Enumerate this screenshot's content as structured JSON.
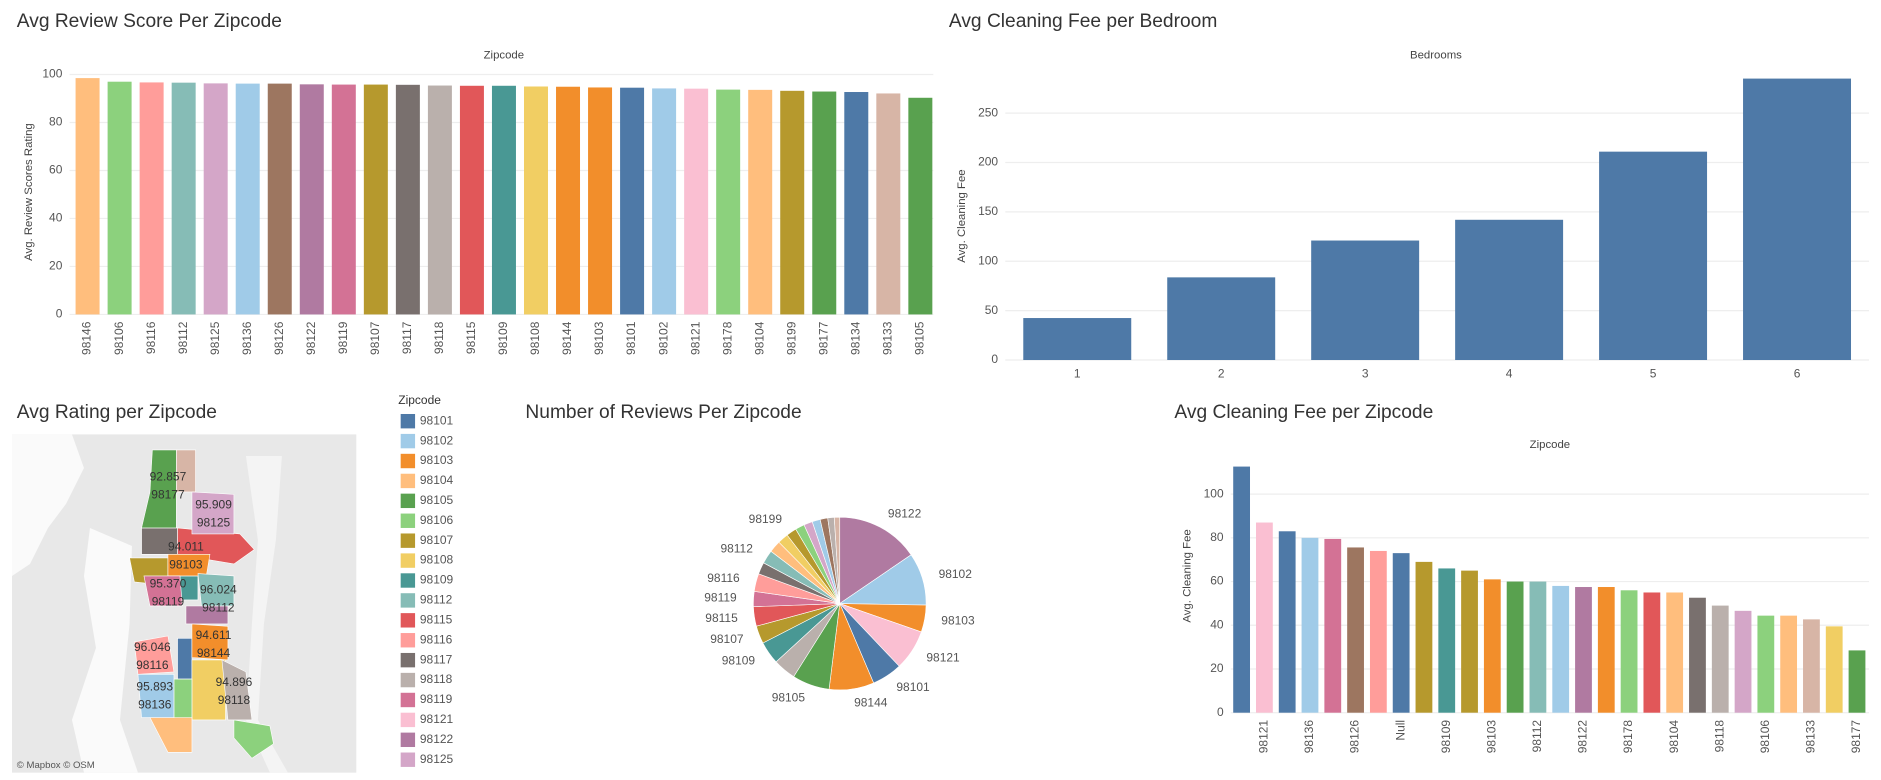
{
  "chart_data": [
    {
      "type": "bar",
      "title": "Avg Review Score Per Zipcode",
      "x_label": "Zipcode",
      "y_label": "Avg. Review Scores Rating",
      "categories": [
        "98146",
        "98106",
        "98116",
        "98112",
        "98125",
        "98136",
        "98126",
        "98122",
        "98119",
        "98107",
        "98117",
        "98118",
        "98115",
        "98109",
        "98108",
        "98144",
        "98103",
        "98101",
        "98102",
        "98121",
        "98178",
        "98104",
        "98199",
        "98177",
        "98134",
        "98133",
        "98105"
      ],
      "values": [
        98.5,
        97.0,
        96.7,
        96.6,
        96.3,
        96.2,
        96.2,
        95.9,
        95.8,
        95.8,
        95.7,
        95.4,
        95.3,
        95.3,
        95.0,
        94.9,
        94.6,
        94.5,
        94.2,
        94.1,
        93.7,
        93.6,
        93.2,
        92.9,
        92.7,
        92.1,
        90.3
      ],
      "colors": [
        "#ffbe7d",
        "#8cd17d",
        "#ff9d9a",
        "#86bcb6",
        "#d4a6c8",
        "#a0cbe8",
        "#9d7660",
        "#b07aa1",
        "#d37295",
        "#b6992d",
        "#79706e",
        "#bab0ac",
        "#e15759",
        "#499894",
        "#f1ce63",
        "#f28e2b",
        "#f28e2b",
        "#4e79a7",
        "#a0cbe8",
        "#fabfd2",
        "#8cd17d",
        "#ffbe7d",
        "#b6992d",
        "#59a14f",
        "#4e79a7",
        "#d7b5a6",
        "#59a14f"
      ],
      "ylim": [
        0,
        102
      ],
      "yticks": [
        0,
        20,
        40,
        60,
        80,
        100
      ],
      "grid": true
    },
    {
      "type": "bar",
      "title": "Avg Cleaning Fee per Bedroom",
      "x_label": "Bedrooms",
      "y_label": "Avg. Cleaning Fee",
      "categories": [
        "1",
        "2",
        "3",
        "4",
        "5",
        "6"
      ],
      "values": [
        42.5,
        83.7,
        121,
        142,
        211,
        285
      ],
      "colors": [
        "#4e79a7",
        "#4e79a7",
        "#4e79a7",
        "#4e79a7",
        "#4e79a7",
        "#4e79a7"
      ],
      "ylim": [
        0,
        294
      ],
      "yticks": [
        0,
        50,
        100,
        150,
        200,
        250
      ],
      "grid": true
    },
    {
      "type": "map",
      "title": "Avg Rating per Zipcode",
      "attribution": "© Mapbox © OSM",
      "zipcodes": [
        "98177",
        "98125",
        "98103",
        "98119",
        "98112",
        "98144",
        "98116",
        "98136",
        "98118"
      ],
      "values": [
        92.857,
        95.909,
        94.011,
        95.37,
        96.024,
        94.611,
        96.046,
        95.893,
        94.896
      ],
      "value_labels": [
        "92.857",
        "95.909",
        "94.011",
        "95.370",
        "96.024",
        "94.611",
        "96.046",
        "95.893",
        "94.896"
      ],
      "colors": [
        "#59a14f",
        "#d4a6c8",
        "#f28e2b",
        "#d37295",
        "#86bcb6",
        "#f28e2b",
        "#ff9d9a",
        "#a0cbe8",
        "#bab0ac"
      ],
      "legend": {
        "title": "Zipcode",
        "items": [
          "98101",
          "98102",
          "98103",
          "98104",
          "98105",
          "98106",
          "98107",
          "98108",
          "98109",
          "98112",
          "98115",
          "98116",
          "98117",
          "98118",
          "98119",
          "98121",
          "98122",
          "98125"
        ],
        "colors": [
          "#4e79a7",
          "#a0cbe8",
          "#f28e2b",
          "#ffbe7d",
          "#59a14f",
          "#8cd17d",
          "#b6992d",
          "#f1ce63",
          "#499894",
          "#86bcb6",
          "#e15759",
          "#ff9d9a",
          "#79706e",
          "#bab0ac",
          "#d37295",
          "#fabfd2",
          "#b07aa1",
          "#d4a6c8"
        ]
      }
    },
    {
      "type": "pie",
      "title": "Number of Reviews Per Zipcode",
      "categories": [
        "98122",
        "98102",
        "98103",
        "98121",
        "98101",
        "98144",
        "98105",
        null,
        "98109",
        "98107",
        "98115",
        "98119",
        "98116",
        null,
        "98112",
        null,
        null,
        "98199",
        null,
        null,
        null,
        null,
        null,
        null
      ],
      "values": [
        15.3,
        9.7,
        5,
        7.5,
        5.6,
        8.3,
        6.9,
        4.2,
        4.2,
        3.3,
        3.6,
        2.8,
        3.3,
        2.2,
        2.5,
        2.2,
        2,
        1.9,
        1.7,
        1.6,
        1.5,
        1.4,
        1.2,
        1
      ],
      "colors": [
        "#b07aa1",
        "#a0cbe8",
        "#f28e2b",
        "#fabfd2",
        "#4e79a7",
        "#f28e2b",
        "#59a14f",
        "#bab0ac",
        "#499894",
        "#b6992d",
        "#e15759",
        "#d37295",
        "#ff9d9a",
        "#79706e",
        "#86bcb6",
        "#ffbe7d",
        "#f1ce63",
        "#b6992d",
        "#8cd17d",
        "#d4a6c8",
        "#a0cbe8",
        "#9d7660",
        "#bab0ac",
        "#d7b5a6"
      ]
    },
    {
      "type": "bar",
      "title": "Avg Cleaning Fee per Zipcode",
      "x_label": "Zipcode",
      "y_label": "Avg. Cleaning Fee",
      "categories": [
        null,
        "98121",
        null,
        "98136",
        null,
        "98126",
        null,
        "Null",
        null,
        "98109",
        null,
        "98103",
        null,
        "98112",
        null,
        "98122",
        null,
        "98178",
        null,
        "98104",
        null,
        "98118",
        null,
        "98106",
        null,
        "98133",
        null,
        "98177"
      ],
      "values": [
        112.6,
        87,
        83,
        80,
        79.5,
        75.6,
        74,
        73,
        69,
        66,
        65,
        61,
        60,
        60,
        58,
        57.5,
        57.5,
        56,
        55,
        55,
        52.6,
        49,
        46.6,
        44.4,
        44.4,
        42.7,
        39.5,
        28.5
      ],
      "colors": [
        "#4e79a7",
        "#fabfd2",
        "#4e79a7",
        "#a0cbe8",
        "#d37295",
        "#9d7660",
        "#ff9d9a",
        "#4e79a7",
        "#b6992d",
        "#499894",
        "#b6992d",
        "#f28e2b",
        "#59a14f",
        "#86bcb6",
        "#a0cbe8",
        "#b07aa1",
        "#f28e2b",
        "#8cd17d",
        "#e15759",
        "#ffbe7d",
        "#79706e",
        "#bab0ac",
        "#d4a6c8",
        "#8cd17d",
        "#ffbe7d",
        "#d7b5a6",
        "#f1ce63",
        "#59a14f"
      ],
      "ylim": [
        0,
        118
      ],
      "yticks": [
        0,
        20,
        40,
        60,
        80,
        100
      ],
      "grid": true
    }
  ]
}
